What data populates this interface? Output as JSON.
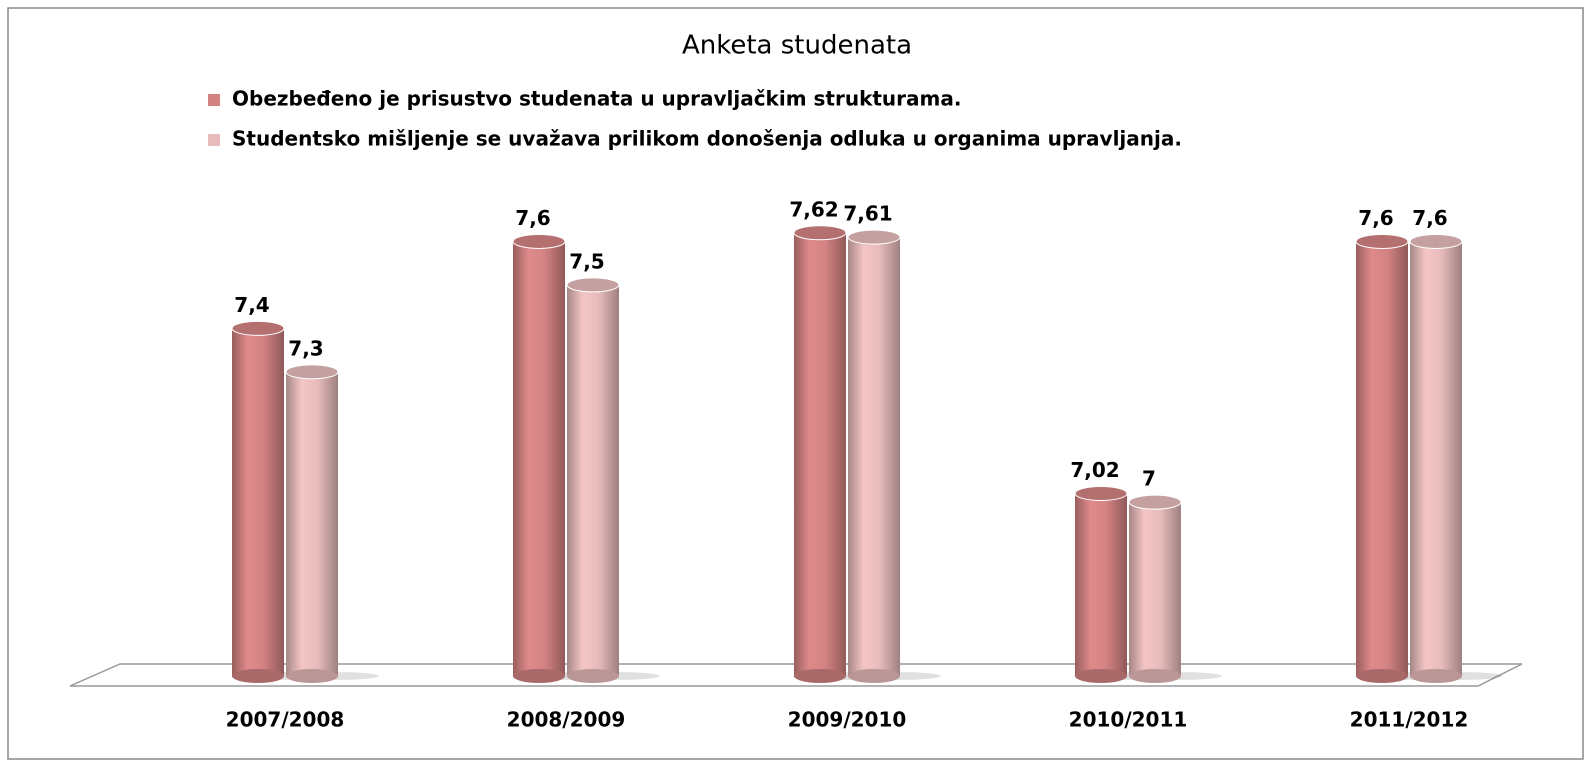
{
  "chart_data": {
    "type": "bar",
    "title": "Anketa studenata",
    "categories": [
      "2007/2008",
      "2008/2009",
      "2009/2010",
      "2010/2011",
      "2011/2012"
    ],
    "series": [
      {
        "name": "Obezbeđeno je prisustvo studenata u upravljačkim strukturama.",
        "color": "#d48383",
        "values": [
          7.4,
          7.6,
          7.62,
          7.02,
          7.6
        ],
        "value_labels": [
          "7,4",
          "7,6",
          "7,62",
          "7,02",
          "7,6"
        ]
      },
      {
        "name": "Studentsko  mišljenje se uvažava prilikom donošenja odluka u organima upravljanja.",
        "color": "#e8bcbc",
        "values": [
          7.3,
          7.5,
          7.61,
          7,
          7.6
        ],
        "value_labels": [
          "7,3",
          "7,5",
          "7,61",
          "7",
          "7,6"
        ]
      }
    ],
    "ylim": [
      6.6,
      7.7
    ]
  }
}
